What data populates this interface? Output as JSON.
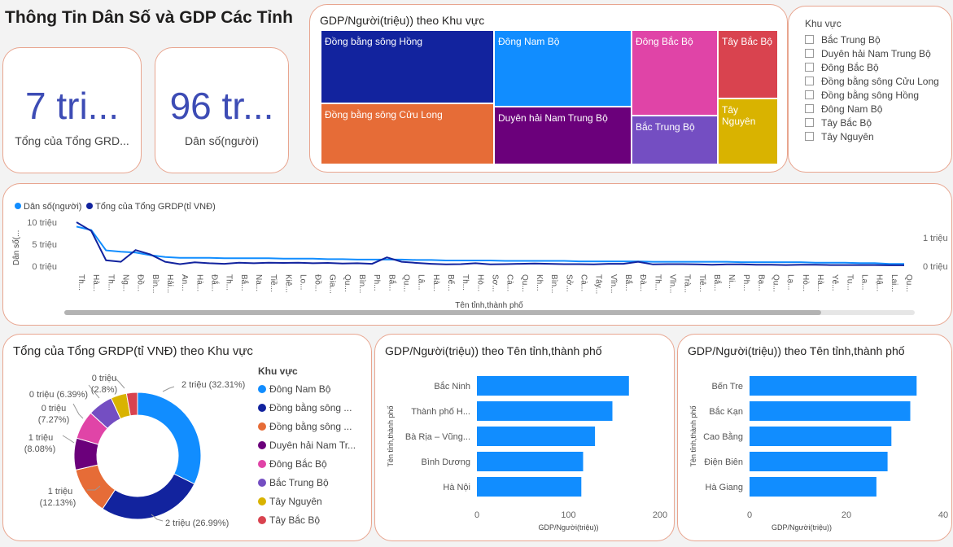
{
  "page_title": "Thông Tin Dân Số và GDP Các Tỉnh",
  "kpis": [
    {
      "value": "7 tri...",
      "label": "Tổng của Tổng GRD..."
    },
    {
      "value": "96 tr...",
      "label": "Dân số(người)"
    }
  ],
  "treemap": {
    "title": "GDP/Người(triệu)) theo Khu vực",
    "cells": [
      {
        "label": "Đồng bằng sông Hồng",
        "color": "#12239e"
      },
      {
        "label": "Đồng bằng sông Cửu Long",
        "color": "#e66c37"
      },
      {
        "label": "Đông Nam Bộ",
        "color": "#118dff"
      },
      {
        "label": "Duyên hải Nam Trung Bộ",
        "color": "#6b007b"
      },
      {
        "label": "Đông Bắc Bộ",
        "color": "#e044a7"
      },
      {
        "label": "Bắc Trung Bộ",
        "color": "#744ec2"
      },
      {
        "label": "Tây Bắc Bộ",
        "color": "#d9434f"
      },
      {
        "label": "Tây Nguyên",
        "color": "#d9b300"
      }
    ]
  },
  "slicer": {
    "title": "Khu vực",
    "items": [
      "Bắc Trung Bộ",
      "Duyên hải Nam Trung Bộ",
      "Đông Bắc Bộ",
      "Đồng bằng sông Cửu Long",
      "Đồng bằng sông Hồng",
      "Đông Nam Bộ",
      "Tây Bắc Bộ",
      "Tây Nguyên"
    ]
  },
  "line_chart": {
    "legend": [
      {
        "name": "Dân số(người)",
        "color": "#118dff"
      },
      {
        "name": "Tổng của Tổng GRDP(tỉ VNĐ)",
        "color": "#12239e"
      }
    ],
    "ylabel_left": "Dân số(...",
    "yticks_left": [
      "10 triệu",
      "5 triệu",
      "0 triệu"
    ],
    "yticks_right": [
      "1 triệu",
      "0 triệu"
    ],
    "xlabel": "Tên tỉnh,thành phố",
    "xticks": [
      "Th...",
      "Hà...",
      "Th...",
      "Ng...",
      "Đồ...",
      "Bìn...",
      "Hải...",
      "An...",
      "Hà...",
      "Đắ...",
      "Th...",
      "Bắ...",
      "Na...",
      "Tiề...",
      "Kiê...",
      "Lo...",
      "Đồ...",
      "Gia...",
      "Qu...",
      "Bìn...",
      "Ph...",
      "Bắ...",
      "Qu...",
      "Lâ...",
      "Hà...",
      "Bế...",
      "Th...",
      "Hò...",
      "Sơ...",
      "Cà...",
      "Qu...",
      "Kh...",
      "Bìn...",
      "Sở...",
      "Cà...",
      "Tây...",
      "Vĩn...",
      "Bắ...",
      "Đà...",
      "Th...",
      "Vĩn...",
      "Trà...",
      "Tiê...",
      "Bắ...",
      "Ni...",
      "Ph...",
      "Bạ...",
      "Qu...",
      "Lạ...",
      "Hò...",
      "Hà...",
      "Yê...",
      "Tu...",
      "La...",
      "Hậ...",
      "Lai...",
      "Qu..."
    ]
  },
  "donut": {
    "title": "Tổng của Tổng GRDP(tỉ VNĐ) theo Khu vực",
    "legend_title": "Khu vực",
    "legend_items": [
      {
        "label": "Đông Nam Bộ",
        "color": "#118dff"
      },
      {
        "label": "Đồng bằng sông ...",
        "color": "#12239e"
      },
      {
        "label": "Đồng bằng sông ...",
        "color": "#e66c37"
      },
      {
        "label": "Duyên hải Nam Tr...",
        "color": "#6b007b"
      },
      {
        "label": "Đông Bắc Bộ",
        "color": "#e044a7"
      },
      {
        "label": "Bắc Trung Bộ",
        "color": "#744ec2"
      },
      {
        "label": "Tây Nguyên",
        "color": "#d9b300"
      },
      {
        "label": "Tây Bắc Bộ",
        "color": "#d9434f"
      }
    ],
    "data_labels": [
      {
        "value": "2 triệu (32.31%)"
      },
      {
        "value": "2 triệu (26.99%)"
      },
      {
        "value": "1 triệu",
        "pct": "(12.13%)"
      },
      {
        "value": "1 triệu",
        "pct": "(8.08%)"
      },
      {
        "value": "0 triệu",
        "pct": "(7.27%)"
      },
      {
        "value": "0 triệu (6.39%)"
      },
      {
        "value": "0 triệu",
        "pct": "(2.8%)"
      }
    ]
  },
  "bar_charts": [
    {
      "title": "GDP/Người(triệu)) theo Tên tỉnh,thành phố",
      "ylabel": "Tên tỉnh,thành phố",
      "xlabel": "GDP/Người(triệu))",
      "xticks": [
        "0",
        "100",
        "200"
      ],
      "xmax": 200
    },
    {
      "title": "GDP/Người(triệu)) theo Tên tỉnh,thành phố",
      "ylabel": "Tên tỉnh,thành phố",
      "xlabel": "GDP/Người(triệu))",
      "xticks": [
        "0",
        "20",
        "40"
      ],
      "xmax": 40
    }
  ],
  "chart_data": [
    {
      "type": "treemap",
      "title": "GDP/Người(triệu)) theo Khu vực",
      "categories": [
        "Đồng bằng sông Hồng",
        "Đồng bằng sông Cửu Long",
        "Đông Nam Bộ",
        "Duyên hải Nam Trung Bộ",
        "Đông Bắc Bộ",
        "Bắc Trung Bộ",
        "Tây Bắc Bộ",
        "Tây Nguyên"
      ]
    },
    {
      "type": "line",
      "xlabel": "Tên tỉnh,thành phố",
      "series": [
        {
          "name": "Dân số(người)",
          "values": [
            9.0,
            8.2,
            3.6,
            3.3,
            3.1,
            2.5,
            2.1,
            1.9,
            1.9,
            1.9,
            1.8,
            1.8,
            1.8,
            1.8,
            1.7,
            1.7,
            1.7,
            1.6,
            1.6,
            1.5,
            1.5,
            1.5,
            1.5,
            1.4,
            1.4,
            1.3,
            1.3,
            1.3,
            1.3,
            1.2,
            1.2,
            1.2,
            1.2,
            1.2,
            1.1,
            1.1,
            1.1,
            1.1,
            1.1,
            1.0,
            1.0,
            1.0,
            1.0,
            1.0,
            1.0,
            0.9,
            0.9,
            0.9,
            0.9,
            0.9,
            0.8,
            0.8,
            0.8,
            0.7,
            0.7,
            0.5,
            0.5
          ]
        },
        {
          "name": "Tổng của Tổng GRDP(tỉ VNĐ)",
          "values": [
            1.5,
            1.2,
            0.2,
            0.15,
            0.55,
            0.4,
            0.15,
            0.07,
            0.13,
            0.1,
            0.08,
            0.12,
            0.1,
            0.12,
            0.11,
            0.12,
            0.1,
            0.11,
            0.09,
            0.1,
            0.08,
            0.3,
            0.15,
            0.11,
            0.08,
            0.06,
            0.07,
            0.1,
            0.06,
            0.07,
            0.08,
            0.09,
            0.08,
            0.07,
            0.07,
            0.06,
            0.08,
            0.08,
            0.15,
            0.06,
            0.07,
            0.07,
            0.06,
            0.05,
            0.06,
            0.06,
            0.05,
            0.05,
            0.04,
            0.05,
            0.05,
            0.04,
            0.04,
            0.04,
            0.04,
            0.03,
            0.03
          ]
        }
      ]
    },
    {
      "type": "pie",
      "title": "Tổng của Tổng GRDP(tỉ VNĐ) theo Khu vực",
      "categories": [
        "Đông Nam Bộ",
        "Đồng bằng sông ...",
        "Đồng bằng sông ...",
        "Duyên hải Nam Tr...",
        "Đông Bắc Bộ",
        "Bắc Trung Bộ",
        "Tây Nguyên",
        "Tây Bắc Bộ"
      ],
      "values": [
        32.31,
        26.99,
        12.13,
        8.08,
        7.27,
        6.39,
        4.03,
        2.8
      ]
    },
    {
      "type": "bar",
      "title": "GDP/Người(triệu)) theo Tên tỉnh,thành phố",
      "categories": [
        "Bắc Ninh",
        "Thành phố H...",
        "Bà Rịa – Vũng...",
        "Bình Dương",
        "Hà Nội"
      ],
      "values": [
        166,
        148,
        129,
        116,
        114
      ],
      "xlim": [
        0,
        200
      ]
    },
    {
      "type": "bar",
      "title": "GDP/Người(triệu)) theo Tên tỉnh,thành phố",
      "categories": [
        "Bến Tre",
        "Bắc Kạn",
        "Cao Bằng",
        "Điện Biên",
        "Hà Giang"
      ],
      "values": [
        34.5,
        33.2,
        29.3,
        28.5,
        26.2
      ],
      "xlim": [
        0,
        40
      ]
    }
  ]
}
